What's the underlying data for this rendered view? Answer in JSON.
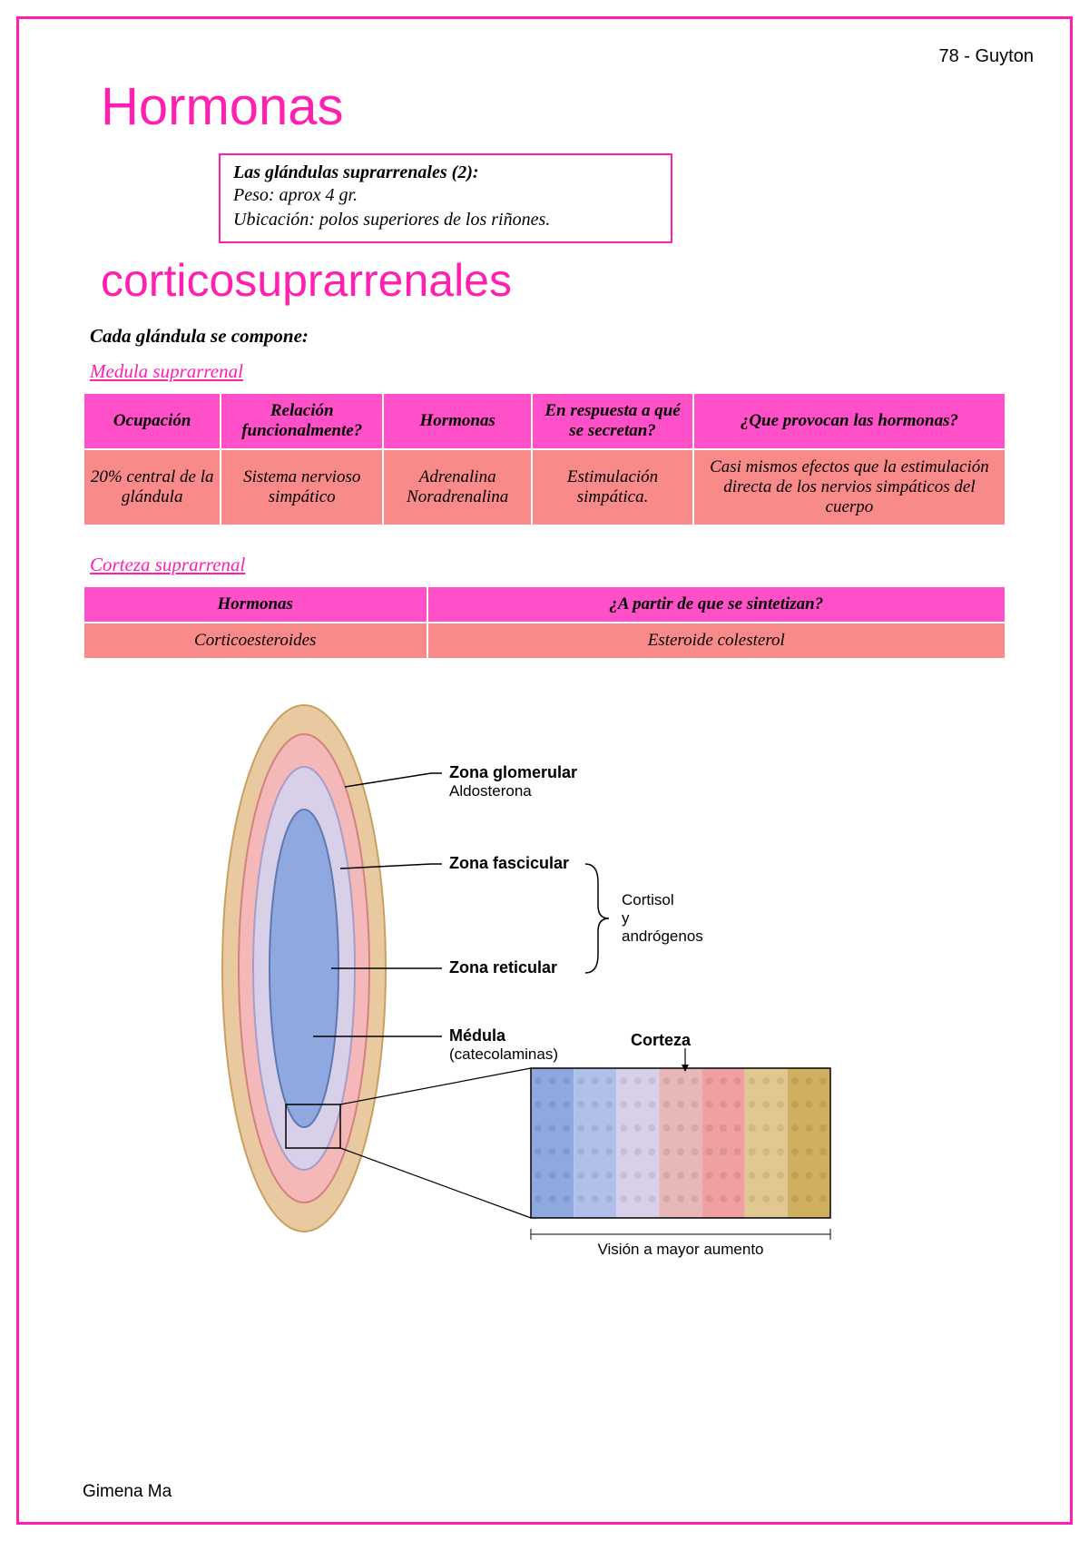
{
  "header": {
    "right": "78 - Guyton"
  },
  "title": {
    "line1": "Hormonas",
    "line2": "corticosuprarrenales"
  },
  "infobox": {
    "title": "Las glándulas suprarrenales (2):",
    "line1": "Peso: aprox 4 gr.",
    "line2": "Ubicación: polos superiores de los riñones."
  },
  "compone": "Cada glándula se compone:",
  "section1": {
    "heading": "Medula suprarrenal",
    "table": {
      "header_bg": "#ff4fc9",
      "body_bg": "#f88a8a",
      "columns": [
        "Ocupación",
        "Relación funcionalmente?",
        "Hormonas",
        "En respuesta a qué se secretan?",
        "¿Que provocan las hormonas?"
      ],
      "row": [
        "20% central de la glándula",
        "Sistema nervioso simpático",
        "Adrenalina Noradrenalina",
        "Estimulación simpática.",
        "Casi mismos efectos que la estimulación directa de los nervios simpáticos del cuerpo"
      ]
    }
  },
  "section2": {
    "heading": "Corteza suprarrenal",
    "table": {
      "header_bg": "#ff4fc9",
      "body_bg": "#f88a8a",
      "columns": [
        "Hormonas",
        "¿A partir de que se sintetizan?"
      ],
      "row": [
        "Corticoesteroides",
        "Esteroide colesterol"
      ]
    }
  },
  "diagram": {
    "type": "infographic",
    "background_color": "#ffffff",
    "gland": {
      "layers": [
        {
          "name": "capsule",
          "fill": "#e9c9a0",
          "stroke": "#c9a060"
        },
        {
          "name": "glomerular",
          "fill": "#f5b8b8",
          "stroke": "#d58080"
        },
        {
          "name": "fascicular-reticular",
          "fill": "#d8d0e8",
          "stroke": "#a89cc8"
        },
        {
          "name": "medulla",
          "fill": "#8fa8e0",
          "stroke": "#5f78b0"
        }
      ]
    },
    "labels": [
      {
        "title": "Zona glomerular",
        "sub": "Aldosterona",
        "bold": true
      },
      {
        "title": "Zona fascicular",
        "sub": "",
        "bold": true
      },
      {
        "title": "Zona reticular",
        "sub": "",
        "bold": true
      },
      {
        "title": "Médula",
        "sub": "(catecolaminas)",
        "bold": true
      }
    ],
    "brace_text": {
      "l1": "Cortisol",
      "l2": "y",
      "l3": "andrógenos"
    },
    "corteza_label": "Corteza",
    "magnified": {
      "caption": "Visión a mayor aumento",
      "stripes": [
        "#8fa8e0",
        "#b0c0ea",
        "#d8d0e8",
        "#e8b8b8",
        "#f0a0a0",
        "#e0c890",
        "#d0b060"
      ]
    },
    "label_fontsize": 18,
    "label_font": "Arial, sans-serif",
    "line_color": "#000000"
  },
  "footer": "Gimena Ma",
  "colors": {
    "pink": "#ff1fb0",
    "table_header": "#ff4fc9",
    "table_body": "#f88a8a"
  }
}
